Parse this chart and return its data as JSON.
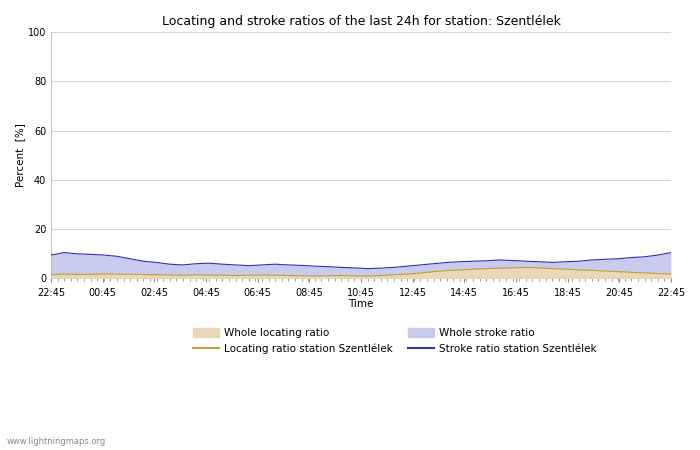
{
  "title": "Locating and stroke ratios of the last 24h for station: Szentlélek",
  "xlabel": "Time",
  "ylabel": "Percent  [%]",
  "ylim": [
    0,
    100
  ],
  "yticks": [
    0,
    20,
    40,
    60,
    80,
    100
  ],
  "x_labels": [
    "22:45",
    "00:45",
    "02:45",
    "04:45",
    "06:45",
    "08:45",
    "10:45",
    "12:45",
    "14:45",
    "16:45",
    "18:45",
    "20:45",
    "22:45"
  ],
  "watermark": "www.lightningmaps.org",
  "whole_locating_color": "#e8d8b8",
  "whole_stroke_color": "#c8caee",
  "locating_line_color": "#c8a030",
  "stroke_line_color": "#3030b0",
  "legend_labels": [
    "Whole locating ratio",
    "Locating ratio station Szentlélek",
    "Whole stroke ratio",
    "Stroke ratio station Szentlélek"
  ],
  "whole_locating_ratio": [
    1.5,
    1.8,
    1.6,
    1.7,
    1.9,
    1.8,
    1.7,
    1.6,
    1.5,
    1.4,
    1.3,
    1.5,
    1.4,
    1.3,
    1.2,
    1.3,
    1.4,
    1.3,
    1.2,
    1.1,
    1.0,
    1.1,
    1.2,
    1.1,
    1.0,
    1.2,
    1.5,
    1.8,
    2.2,
    2.8,
    3.2,
    3.5,
    3.8,
    4.0,
    4.2,
    4.3,
    4.5,
    4.3,
    4.0,
    3.8,
    3.5,
    3.3,
    3.0,
    2.8,
    2.5,
    2.3,
    2.0,
    1.8
  ],
  "whole_stroke_ratio": [
    9.5,
    10.5,
    10.0,
    9.8,
    9.5,
    9.0,
    8.0,
    7.0,
    6.5,
    5.8,
    5.5,
    6.0,
    6.2,
    5.8,
    5.5,
    5.2,
    5.5,
    5.8,
    5.5,
    5.3,
    5.0,
    4.8,
    4.5,
    4.3,
    4.0,
    4.2,
    4.5,
    5.0,
    5.5,
    6.0,
    6.5,
    6.8,
    7.0,
    7.2,
    7.5,
    7.3,
    7.0,
    6.8,
    6.5,
    6.8,
    7.0,
    7.5,
    7.8,
    8.0,
    8.5,
    8.8,
    9.5,
    10.5
  ],
  "locating_line": [
    1.5,
    1.8,
    1.6,
    1.7,
    1.9,
    1.8,
    1.7,
    1.6,
    1.5,
    1.4,
    1.3,
    1.5,
    1.4,
    1.3,
    1.2,
    1.3,
    1.4,
    1.3,
    1.2,
    1.1,
    1.0,
    1.1,
    1.2,
    1.1,
    1.0,
    1.2,
    1.5,
    1.8,
    2.2,
    2.8,
    3.2,
    3.5,
    3.8,
    4.0,
    4.2,
    4.3,
    4.5,
    4.3,
    4.0,
    3.8,
    3.5,
    3.3,
    3.0,
    2.8,
    2.5,
    2.3,
    2.0,
    1.8
  ],
  "stroke_line": [
    9.5,
    10.5,
    10.0,
    9.8,
    9.5,
    9.0,
    8.0,
    7.0,
    6.5,
    5.8,
    5.5,
    6.0,
    6.2,
    5.8,
    5.5,
    5.2,
    5.5,
    5.8,
    5.5,
    5.3,
    5.0,
    4.8,
    4.5,
    4.3,
    4.0,
    4.2,
    4.5,
    5.0,
    5.5,
    6.0,
    6.5,
    6.8,
    7.0,
    7.2,
    7.5,
    7.3,
    7.0,
    6.8,
    6.5,
    6.8,
    7.0,
    7.5,
    7.8,
    8.0,
    8.5,
    8.8,
    9.5,
    10.5
  ],
  "background_color": "#ffffff",
  "plot_bg_color": "#ffffff",
  "grid_color": "#cccccc",
  "title_fontsize": 9,
  "axis_fontsize": 7,
  "label_fontsize": 7.5,
  "legend_fontsize": 7.5
}
